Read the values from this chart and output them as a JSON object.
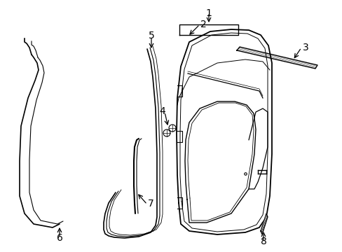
{
  "background_color": "#ffffff",
  "line_color": "#000000",
  "figure_width": 4.89,
  "figure_height": 3.6,
  "dpi": 100,
  "label_fontsize": 10
}
